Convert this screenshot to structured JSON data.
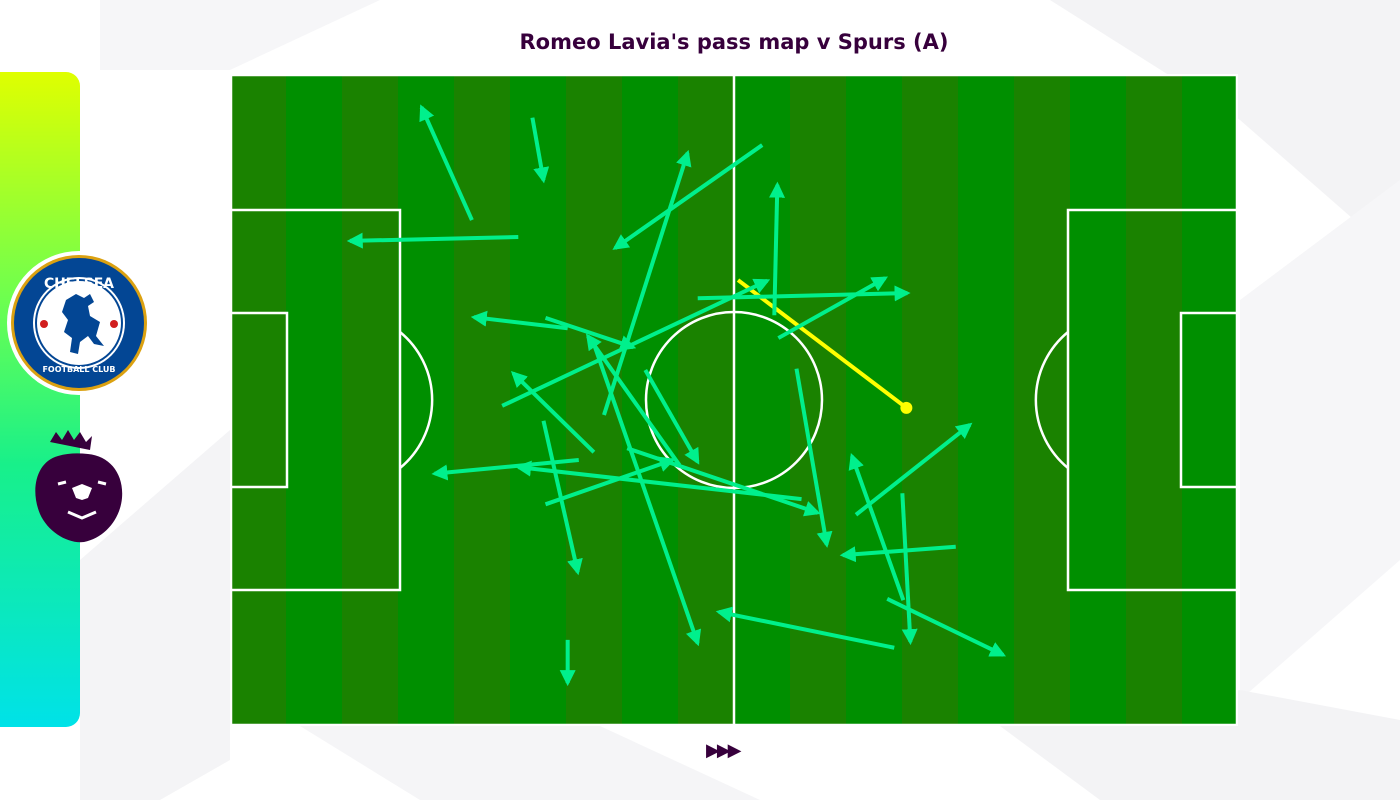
{
  "title": "Romeo Lavia's pass map v Spurs (A)",
  "logos": {
    "club_badge": {
      "icon": "chelsea-badge",
      "lettering": [
        "CHELSEA",
        "FOOTBALL CLUB"
      ]
    },
    "league_logo": {
      "icon": "premier-league-lion"
    }
  },
  "next_icon": "triple-play-arrows",
  "colors": {
    "title": "#37003c",
    "pitch_stripe_a": "#008f00",
    "pitch_stripe_b": "#1a8200",
    "pass_completed": "#00f08c",
    "pass_highlight": "#ffff00",
    "lines": "#ffffff"
  },
  "chart_data": {
    "type": "pass-map",
    "title": "Romeo Lavia's pass map v Spurs (A)",
    "coordinate_system": "pitch percent, x 0-100 left to right (attacking right), y 0-100 top to bottom",
    "xlim": [
      0,
      100
    ],
    "ylim": [
      0,
      100
    ],
    "grid": false,
    "passes": [
      {
        "start": [
          24.0,
          22.4
        ],
        "end": [
          19.0,
          5.1
        ],
        "type": "completed"
      },
      {
        "start": [
          30.0,
          6.7
        ],
        "end": [
          31.1,
          16.3
        ],
        "type": "completed"
      },
      {
        "start": [
          28.6,
          25.0
        ],
        "end": [
          11.9,
          25.6
        ],
        "type": "completed"
      },
      {
        "start": [
          52.8,
          10.9
        ],
        "end": [
          38.2,
          26.7
        ],
        "type": "completed"
      },
      {
        "start": [
          37.1,
          52.3
        ],
        "end": [
          45.4,
          12.1
        ],
        "type": "completed"
      },
      {
        "start": [
          54.0,
          37.0
        ],
        "end": [
          54.3,
          17.0
        ],
        "type": "completed"
      },
      {
        "start": [
          46.4,
          34.4
        ],
        "end": [
          67.2,
          33.6
        ],
        "type": "completed"
      },
      {
        "start": [
          54.4,
          40.5
        ],
        "end": [
          65.0,
          31.3
        ],
        "type": "completed"
      },
      {
        "start": [
          27.0,
          50.9
        ],
        "end": [
          53.3,
          31.7
        ],
        "type": "completed"
      },
      {
        "start": [
          33.5,
          39.0
        ],
        "end": [
          24.2,
          37.3
        ],
        "type": "completed"
      },
      {
        "start": [
          31.3,
          37.4
        ],
        "end": [
          40.0,
          41.9
        ],
        "type": "completed"
      },
      {
        "start": [
          36.1,
          58.0
        ],
        "end": [
          28.1,
          45.9
        ],
        "type": "completed"
      },
      {
        "start": [
          35.9,
          40.5
        ],
        "end": [
          46.4,
          87.3
        ],
        "type": "completed"
      },
      {
        "start": [
          44.6,
          60.0
        ],
        "end": [
          35.5,
          40.2
        ],
        "type": "completed"
      },
      {
        "start": [
          41.2,
          45.4
        ],
        "end": [
          46.4,
          59.5
        ],
        "type": "completed"
      },
      {
        "start": [
          34.6,
          59.2
        ],
        "end": [
          20.3,
          61.3
        ],
        "type": "completed"
      },
      {
        "start": [
          56.7,
          65.2
        ],
        "end": [
          28.6,
          60.3
        ],
        "type": "completed"
      },
      {
        "start": [
          31.1,
          53.2
        ],
        "end": [
          34.5,
          76.4
        ],
        "type": "completed"
      },
      {
        "start": [
          31.3,
          66.0
        ],
        "end": [
          43.9,
          59.2
        ],
        "type": "completed"
      },
      {
        "start": [
          39.4,
          57.4
        ],
        "end": [
          58.3,
          67.3
        ],
        "type": "completed"
      },
      {
        "start": [
          33.5,
          86.8
        ],
        "end": [
          33.5,
          93.4
        ],
        "type": "completed"
      },
      {
        "start": [
          65.9,
          88.0
        ],
        "end": [
          48.5,
          82.5
        ],
        "type": "completed"
      },
      {
        "start": [
          56.2,
          45.2
        ],
        "end": [
          59.2,
          72.2
        ],
        "type": "completed"
      },
      {
        "start": [
          62.1,
          67.6
        ],
        "end": [
          73.4,
          53.8
        ],
        "type": "completed"
      },
      {
        "start": [
          66.8,
          80.7
        ],
        "end": [
          61.7,
          58.6
        ],
        "type": "completed"
      },
      {
        "start": [
          66.7,
          64.3
        ],
        "end": [
          67.5,
          87.1
        ],
        "type": "completed"
      },
      {
        "start": [
          72.0,
          72.5
        ],
        "end": [
          60.8,
          73.8
        ],
        "type": "completed"
      },
      {
        "start": [
          65.2,
          80.5
        ],
        "end": [
          76.7,
          89.1
        ],
        "type": "completed"
      },
      {
        "start": [
          50.4,
          31.6
        ],
        "end": [
          67.1,
          51.2
        ],
        "type": "highlight"
      }
    ]
  }
}
